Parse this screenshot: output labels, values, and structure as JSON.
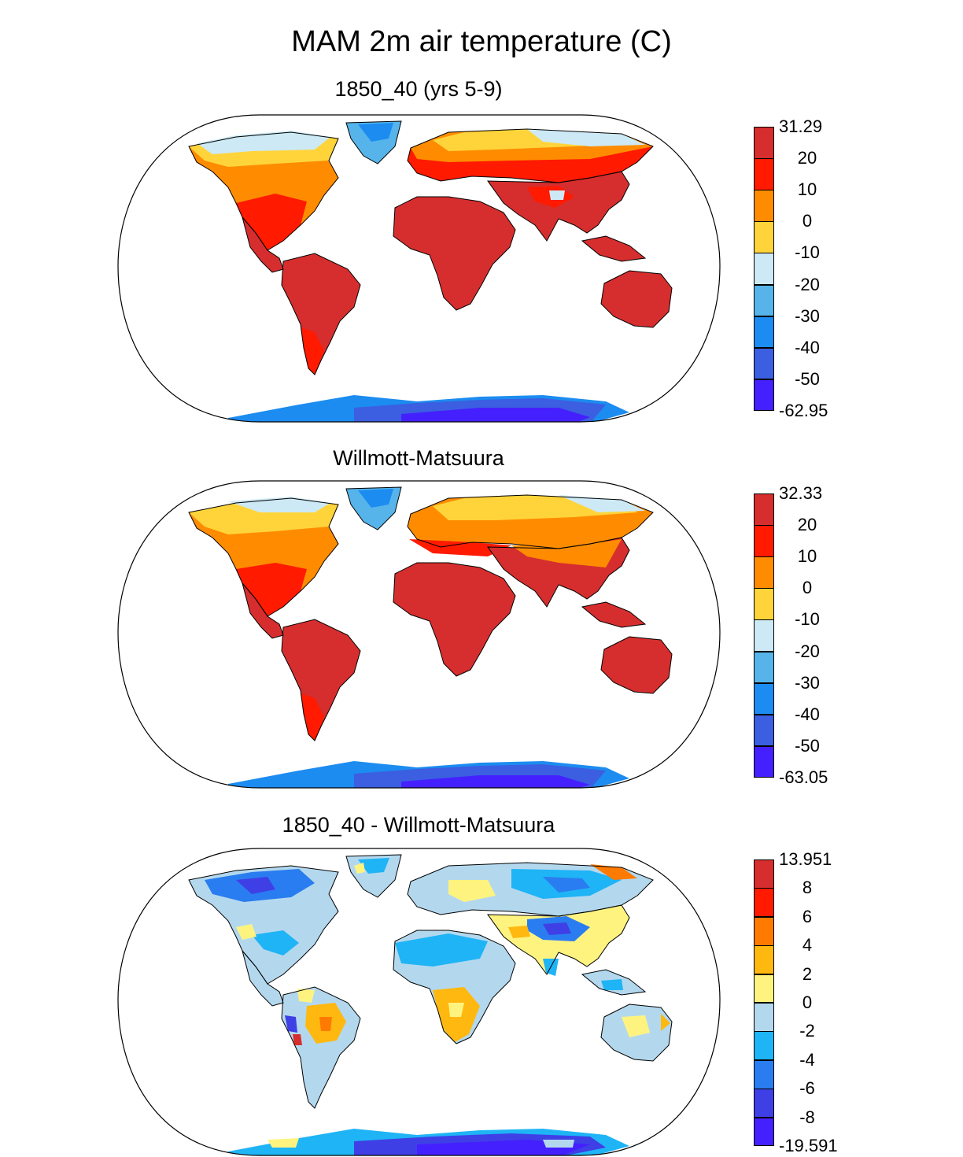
{
  "title": "MAM 2m air temperature (C)",
  "panels": [
    {
      "id": "model",
      "title": "1850_40 (yrs 5-9)",
      "colorbar": {
        "max_label": "31.29",
        "min_label": "-62.95",
        "tick_labels": [
          "20",
          "10",
          "0",
          "-10",
          "-20",
          "-30",
          "-40",
          "-50"
        ],
        "colors": [
          "#d62e2e",
          "#ff1a00",
          "#ff8c00",
          "#ffd43b",
          "#cce9f5",
          "#56b4ea",
          "#1c8cf0",
          "#3b5fe0",
          "#4520ff"
        ]
      }
    },
    {
      "id": "obs",
      "title": "Willmott-Matsuura",
      "colorbar": {
        "max_label": "32.33",
        "min_label": "-63.05",
        "tick_labels": [
          "20",
          "10",
          "0",
          "-10",
          "-20",
          "-30",
          "-40",
          "-50"
        ],
        "colors": [
          "#d62e2e",
          "#ff1a00",
          "#ff8c00",
          "#ffd43b",
          "#cce9f5",
          "#56b4ea",
          "#1c8cf0",
          "#3b5fe0",
          "#4520ff"
        ]
      }
    },
    {
      "id": "diff",
      "title": "1850_40 - Willmott-Matsuura",
      "colorbar": {
        "max_label": "13.951",
        "min_label": "-19.591",
        "tick_labels": [
          "8",
          "6",
          "4",
          "2",
          "0",
          "-2",
          "-4",
          "-6",
          "-8"
        ],
        "colors": [
          "#d62e2e",
          "#ff1a00",
          "#ff7a00",
          "#ffb80f",
          "#fff380",
          "#b3d8ee",
          "#1fb4f5",
          "#2a7df0",
          "#3f3fe6",
          "#4520ff"
        ]
      }
    }
  ]
}
